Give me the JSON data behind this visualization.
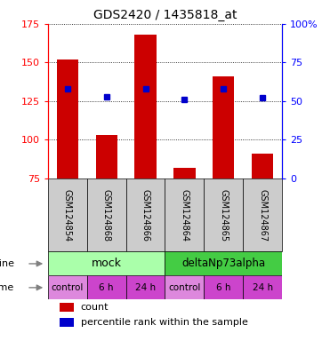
{
  "title": "GDS2420 / 1435818_at",
  "samples": [
    "GSM124854",
    "GSM124868",
    "GSM124866",
    "GSM124864",
    "GSM124865",
    "GSM124867"
  ],
  "red_values": [
    152,
    103,
    168,
    82,
    141,
    91
  ],
  "blue_values": [
    133,
    128,
    133,
    126,
    133,
    127
  ],
  "y_min": 75,
  "y_max": 175,
  "y_ticks_left": [
    75,
    100,
    125,
    150,
    175
  ],
  "y_ticks_right_pct": [
    0,
    25,
    50,
    75,
    100
  ],
  "y_ticks_right_labels": [
    "0",
    "25",
    "50",
    "75",
    "100%"
  ],
  "time_labels": [
    "control",
    "6 h",
    "24 h",
    "control",
    "6 h",
    "24 h"
  ],
  "time_colors": [
    "#dd88dd",
    "#cc44cc",
    "#cc44cc",
    "#dd88dd",
    "#cc44cc",
    "#cc44cc"
  ],
  "mock_color": "#aaffaa",
  "delta_color": "#44cc44",
  "cell_bg_color": "#cccccc",
  "bar_color": "#cc0000",
  "dot_color": "#0000cc"
}
